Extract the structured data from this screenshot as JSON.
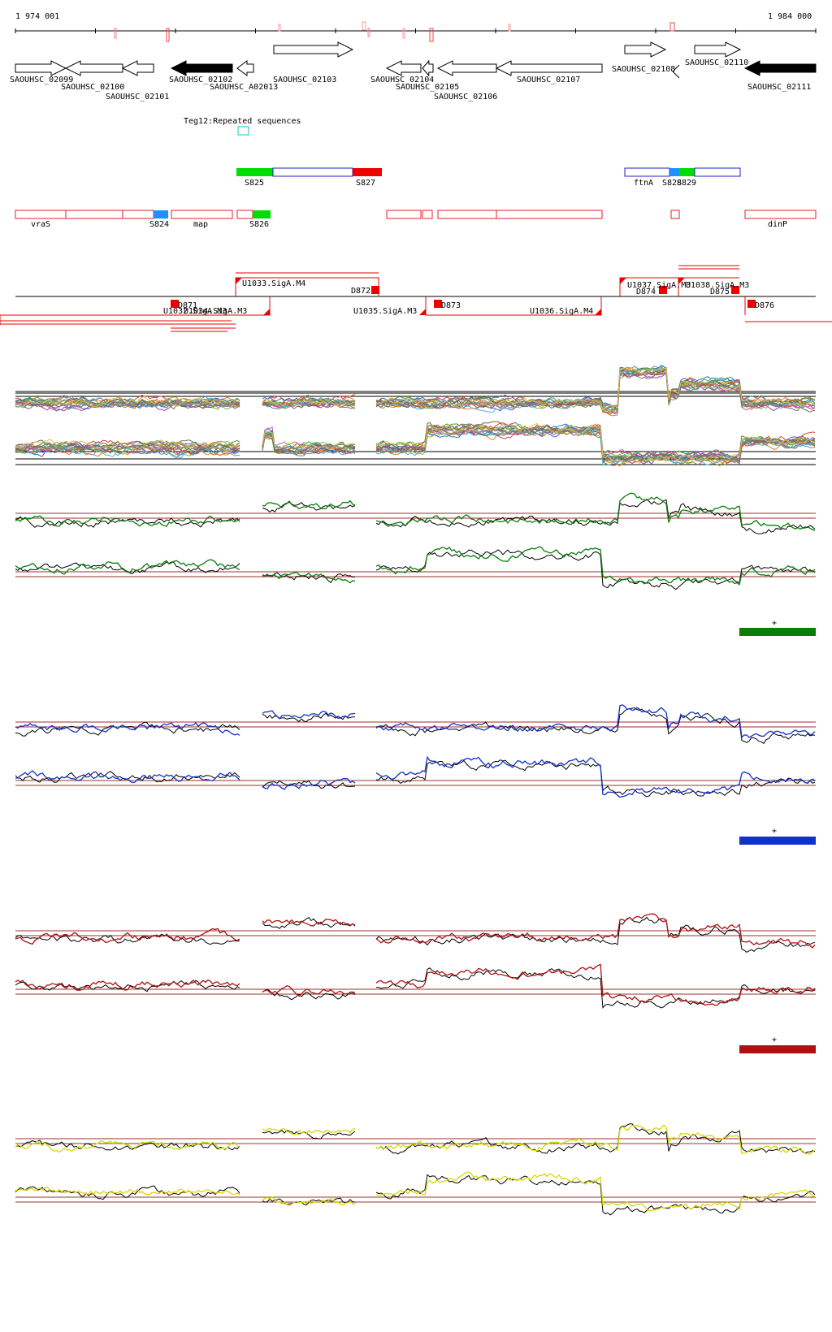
{
  "coordinates": {
    "start": "1 974 001",
    "end": "1 984 000"
  },
  "genes": [
    {
      "label": "SAOUHSC_02099",
      "strand": "+",
      "filled": false
    },
    {
      "label": "SAOUHSC_02100",
      "strand": "-",
      "filled": false
    },
    {
      "label": "SAOUHSC_02101",
      "strand": "-",
      "filled": false
    },
    {
      "label": "SAOUHSC_02102",
      "strand": "-",
      "filled": true
    },
    {
      "label": "SAOUHSC_A02013",
      "strand": "-",
      "filled": false
    },
    {
      "label": "SAOUHSC_02103",
      "strand": "+",
      "filled": false
    },
    {
      "label": "SAOUHSC_02104",
      "strand": "-",
      "filled": false
    },
    {
      "label": "SAOUHSC_02105",
      "strand": "-",
      "filled": false
    },
    {
      "label": "SAOUHSC_02106",
      "strand": "-",
      "filled": false
    },
    {
      "label": "SAOUHSC_02107",
      "strand": "-",
      "filled": false
    },
    {
      "label": "SAOUHSC_02108",
      "strand": "+",
      "filled": false
    },
    {
      "label": "SAOUHSC_02110",
      "strand": "+",
      "filled": false
    },
    {
      "label": "SAOUHSC_02111",
      "strand": "-",
      "filled": true
    }
  ],
  "repeat_label": "Teg12:Repeated sequences",
  "segments_upper": [
    "S825",
    "S827",
    "ftnA",
    "S828",
    "S829"
  ],
  "segments_lower": [
    "vraS",
    "S824",
    "map",
    "S826",
    "dinP"
  ],
  "promoters": [
    "U1033.SigA.M4",
    "D872",
    "U1037.SigA.M3",
    "U1038.SigA.M3",
    "D874",
    "D875",
    "D871",
    "U1032.SigA.M3",
    "U1034.SigA.M3",
    "D873",
    "U1035.SigA.M3",
    "U1036.SigA.M4",
    "D876"
  ],
  "panels": [
    {
      "color": "#0a7d0a",
      "legend_mark": "+"
    },
    {
      "color": "#1132c8",
      "legend_mark": "+"
    },
    {
      "color": "#b01010",
      "legend_mark": "+"
    },
    {
      "color": "#d8d800",
      "legend_mark": ""
    }
  ],
  "colors": {
    "outline_red": "#e02020",
    "segment_green": "#00dd00",
    "segment_red": "#ee0000",
    "segment_blue": "#1e90ff",
    "segment_navy": "#2020c0",
    "repeat_cyan": "#00cccc",
    "threshold_line": "#9b3030"
  }
}
